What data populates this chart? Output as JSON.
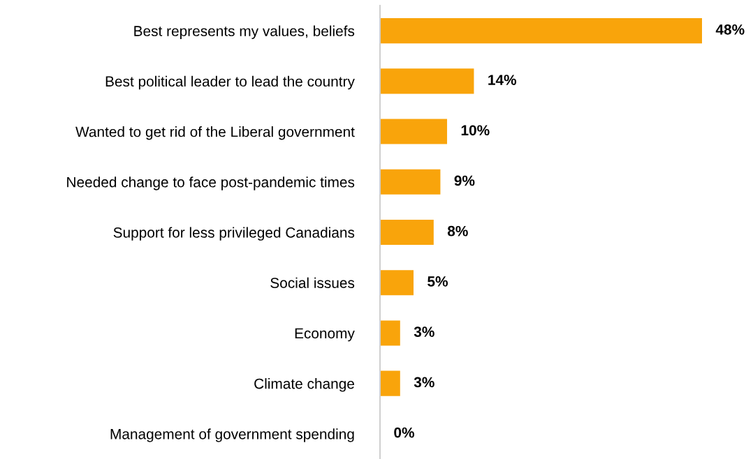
{
  "chart_data": {
    "type": "bar",
    "orientation": "horizontal",
    "categories": [
      "Best represents my values, beliefs",
      "Best political leader to lead the country",
      "Wanted to get rid of the Liberal government",
      "Needed change to face post-pandemic times",
      "Support for less privileged Canadians",
      "Social issues",
      "Economy",
      "Climate change",
      "Management of government spending"
    ],
    "values": [
      48,
      14,
      10,
      9,
      8,
      5,
      3,
      3,
      0
    ],
    "value_labels": [
      "48%",
      "14%",
      "10%",
      "9%",
      "8%",
      "5%",
      "3%",
      "3%",
      "0%"
    ],
    "color": "#f9a40b",
    "grid": false,
    "legend": false
  }
}
